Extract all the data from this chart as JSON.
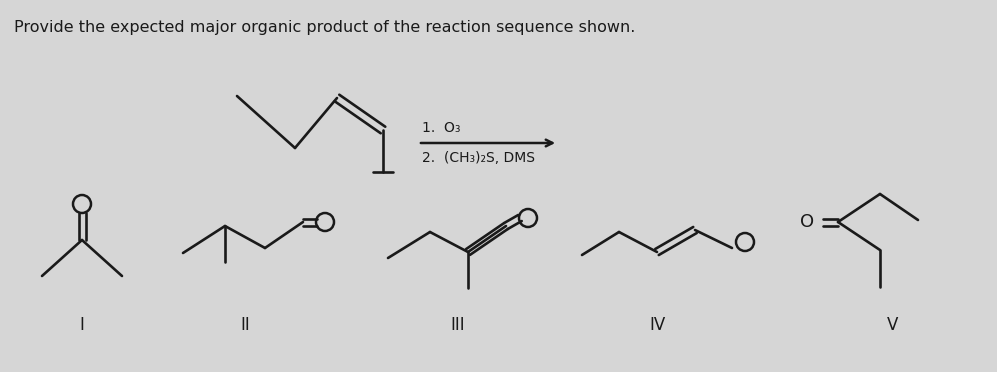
{
  "title": "Provide the expected major organic product of the reaction sequence shown.",
  "bg_color": "#d6d6d6",
  "line_color": "#1a1a1a",
  "reaction_step1": "1.  O₃",
  "reaction_step2": "2.  (CH₃)₂S, DMS",
  "labels": [
    "I",
    "II",
    "III",
    "IV",
    "V"
  ],
  "font_size_title": 11.5,
  "font_size_label": 12,
  "font_size_o": 12
}
